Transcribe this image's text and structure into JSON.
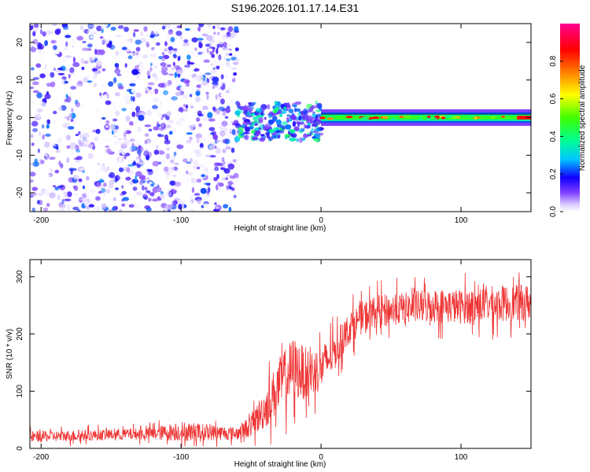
{
  "title": "S196.2026.101.17.14.E31",
  "colors": {
    "snr_line": "#ee3333",
    "axis": "#000000",
    "background": "#ffffff"
  },
  "chart_data": [
    {
      "type": "heatmap",
      "name": "spectrogram",
      "xlabel": "Height of straight line (km)",
      "ylabel": "Frequency (Hz)",
      "xlim": [
        -208,
        150
      ],
      "ylim": [
        -25,
        25
      ],
      "xticks": [
        -200,
        -100,
        0,
        100
      ],
      "xticklabels": [
        "-200",
        "-100",
        "0",
        "100"
      ],
      "yticks": [
        -20,
        -10,
        0,
        10,
        20
      ],
      "yticklabels": [
        "-20",
        "-10",
        "0",
        "10",
        "20"
      ],
      "colorbar": {
        "label": "Normalized spectral amplitude",
        "range": [
          0,
          1
        ],
        "ticks": [
          0.0,
          0.2,
          0.4,
          0.6,
          0.8
        ],
        "ticklabels": [
          "0.0",
          "0.2",
          "0.4",
          "0.6",
          "0.8"
        ],
        "colormap": [
          "#ffffff",
          "#a080ff",
          "#7000ff",
          "#0000ff",
          "#00d0ff",
          "#00ff80",
          "#80ff00",
          "#ffff00",
          "#ff8000",
          "#ff0000",
          "#ff0080"
        ]
      },
      "regions": [
        {
          "x_range": [
            -208,
            -60
          ],
          "freq_range": [
            -25,
            25
          ],
          "description": "broadband noise",
          "amplitude_range": [
            0.0,
            0.25
          ]
        },
        {
          "x_range": [
            -60,
            0
          ],
          "freq_range": [
            -6,
            4
          ],
          "description": "signal emerging",
          "amplitude_range": [
            0.1,
            0.45
          ]
        },
        {
          "x_range": [
            0,
            150
          ],
          "freq_range": [
            -1.5,
            1.5
          ],
          "description": "narrow carrier near 0 Hz",
          "amplitude_range": [
            0.3,
            0.9
          ]
        }
      ]
    },
    {
      "type": "line",
      "name": "snr",
      "xlabel": "Height of straight line (km)",
      "ylabel": "SNR (10 * v/v)",
      "xlim": [
        -208,
        150
      ],
      "ylim": [
        0,
        330
      ],
      "xticks": [
        -200,
        -100,
        0,
        100
      ],
      "xticklabels": [
        "-200",
        "-100",
        "0",
        "100"
      ],
      "yticks": [
        0,
        100,
        200,
        300
      ],
      "yticklabels": [
        "0",
        "100",
        "200",
        "300"
      ],
      "series": [
        {
          "name": "SNR",
          "x": [
            -208,
            -180,
            -150,
            -120,
            -100,
            -80,
            -60,
            -50,
            -40,
            -30,
            -20,
            -10,
            0,
            10,
            20,
            30,
            40,
            60,
            80,
            100,
            120,
            150
          ],
          "y": [
            20,
            22,
            24,
            26,
            30,
            28,
            26,
            40,
            70,
            110,
            140,
            130,
            140,
            170,
            210,
            230,
            240,
            245,
            250,
            248,
            252,
            255
          ],
          "noise_amplitude": [
            12,
            12,
            12,
            14,
            22,
            18,
            14,
            25,
            45,
            60,
            70,
            55,
            50,
            40,
            35,
            35,
            35,
            35,
            38,
            38,
            40,
            40
          ]
        }
      ]
    }
  ]
}
